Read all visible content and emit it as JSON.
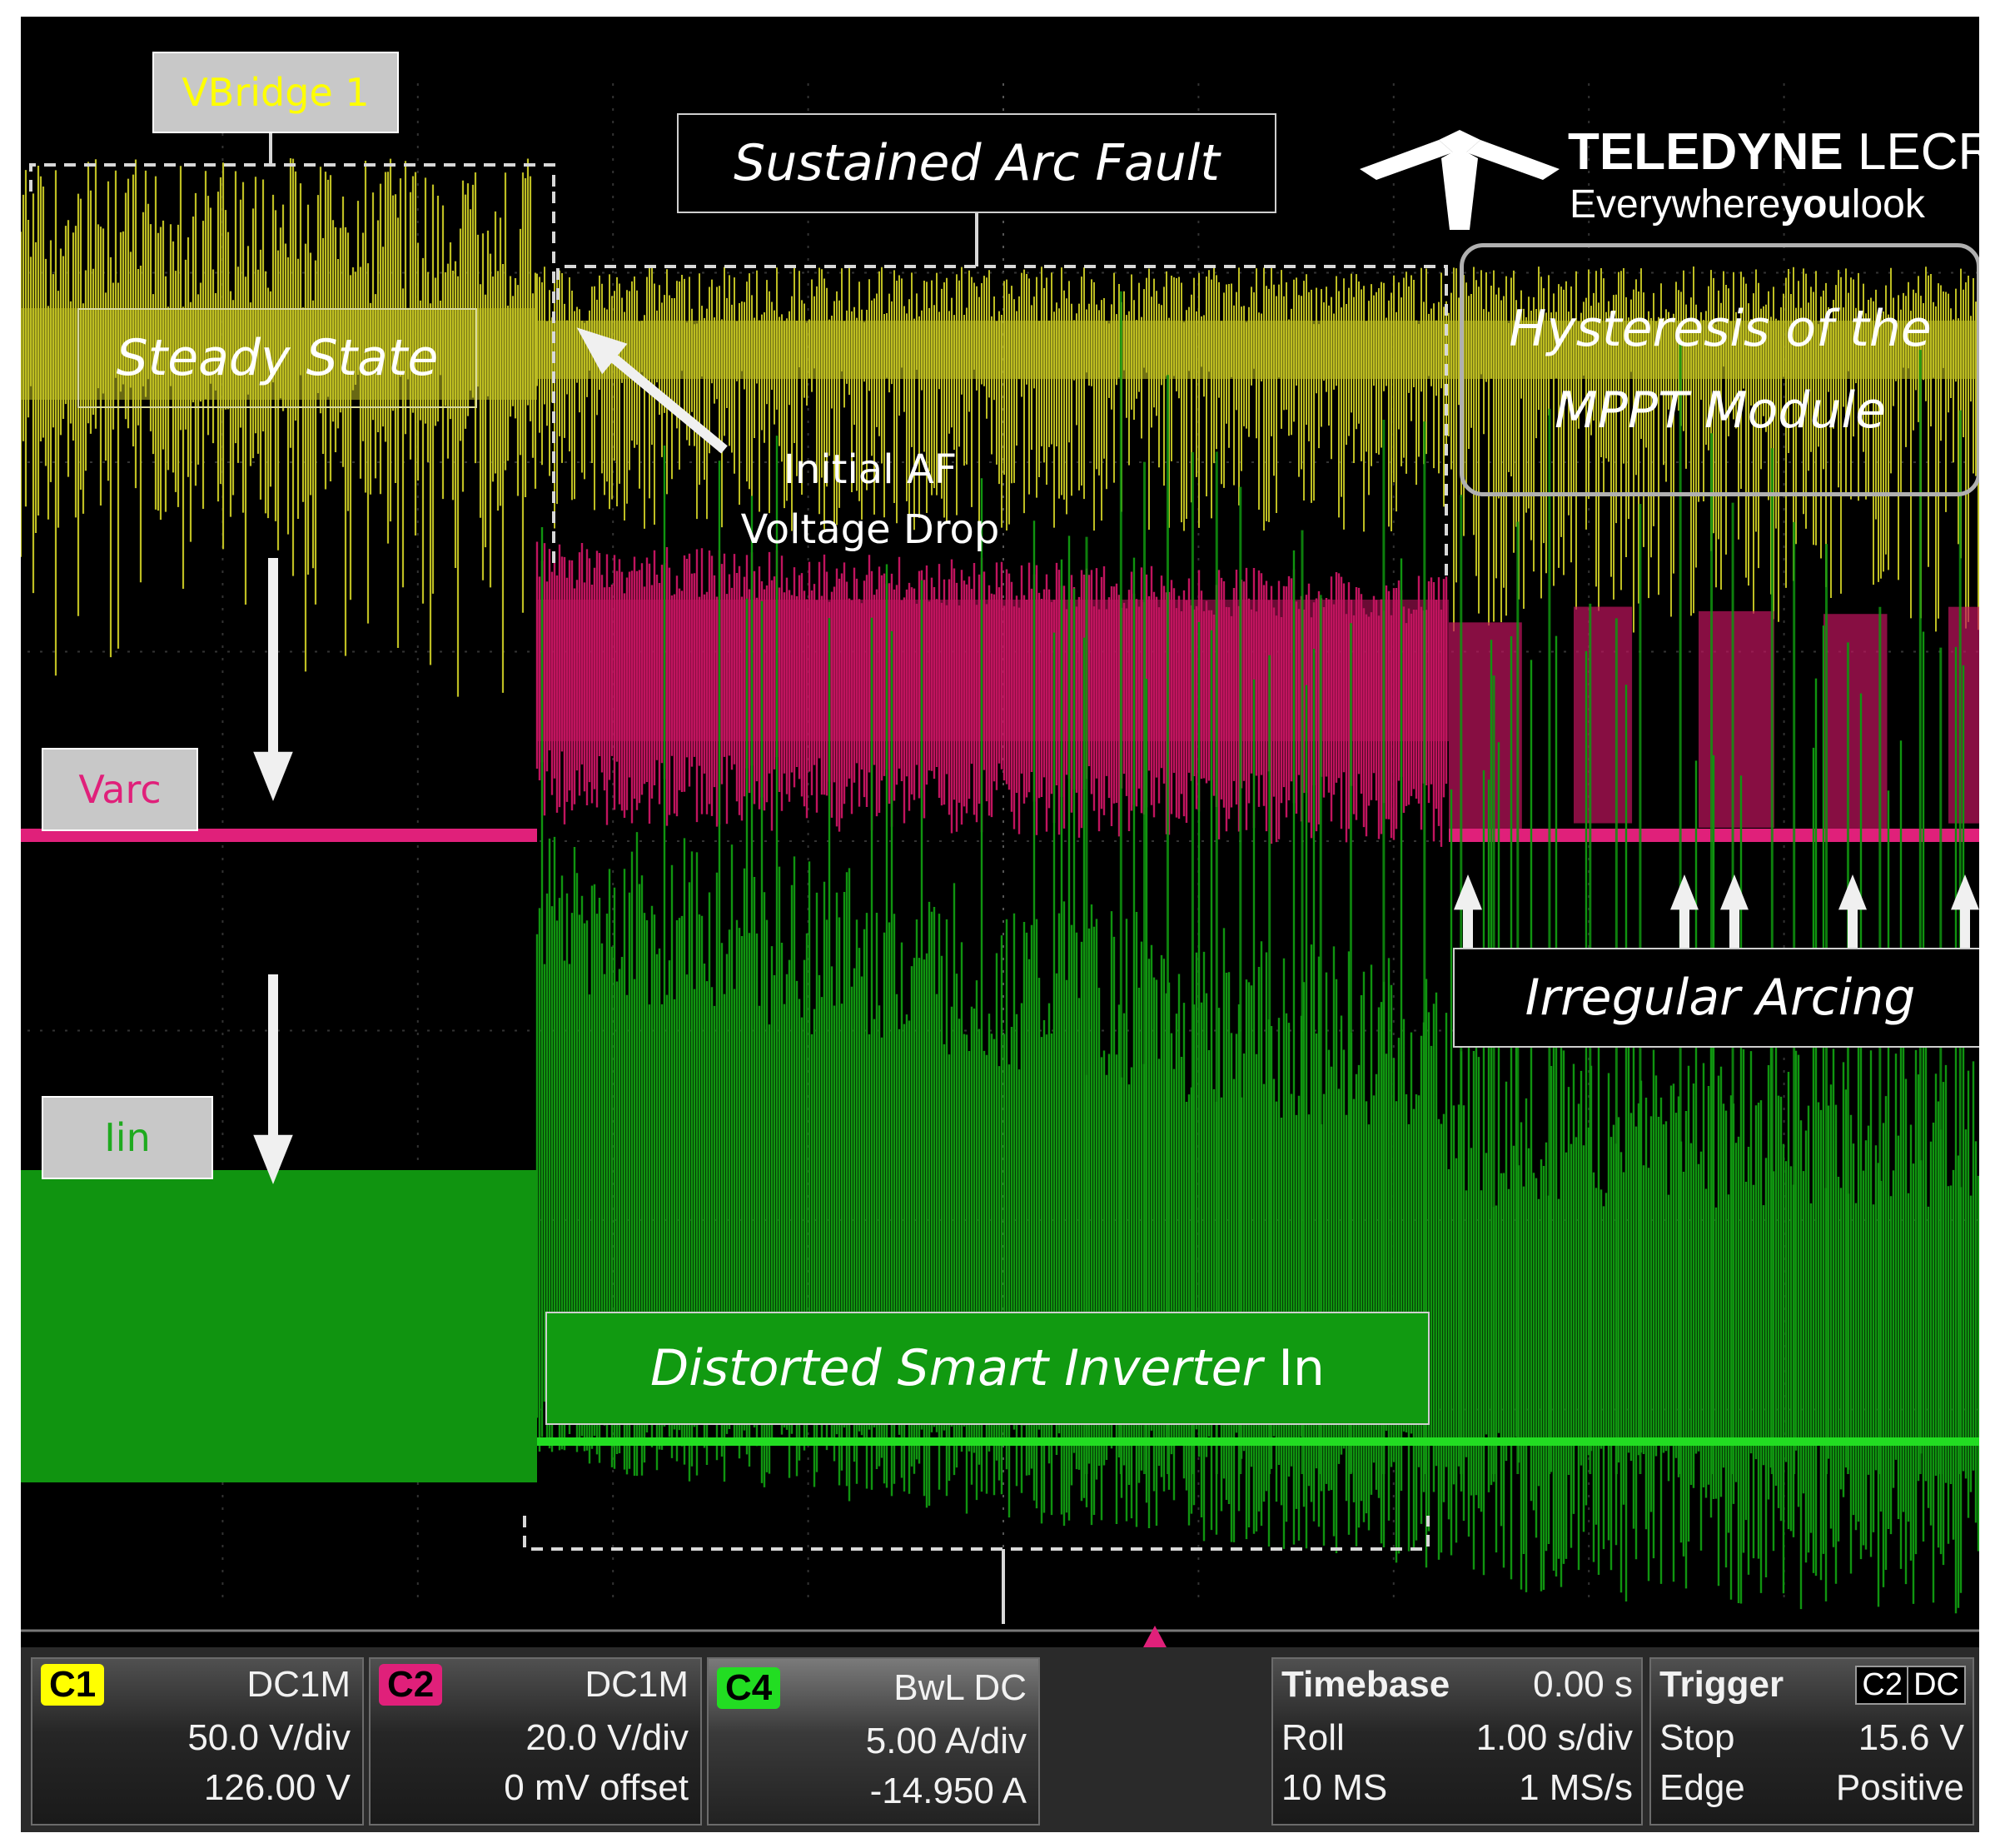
{
  "brand": {
    "name_bold": "TELEDYNE",
    "name_light": " LECROY",
    "tag_plain": "Everywhere",
    "tag_bold": "you",
    "tag_end": "look"
  },
  "channels": {
    "vbridge": {
      "label": "VBridge 1",
      "color": "#ffff00"
    },
    "varc": {
      "label": "Varc",
      "color": "#e0207a"
    },
    "iin": {
      "label": "Iin",
      "color": "#1faa1f"
    }
  },
  "trace_colors": {
    "yellow": "#bdbd22",
    "magenta": "#c0145e",
    "green": "#109410"
  },
  "annotations": {
    "steady_state": "Steady State",
    "sustained_arc": "Sustained Arc Fault",
    "hysteresis_line1": "Hysteresis of the",
    "hysteresis_line2": "MPPT Module",
    "initial_af_line1": "Initial AF",
    "initial_af_line2": "Voltage Drop",
    "irregular_arcing": "Irregular Arcing",
    "distorted_italic": "Distorted Smart Inverter",
    "distorted_plain": " In"
  },
  "panel": {
    "c1": {
      "badge": "C1",
      "coupling": "DC1M",
      "scale": "50.0 V/div",
      "offset": "126.00 V",
      "color": "#ffff00"
    },
    "c2": {
      "badge": "C2",
      "coupling": "DC1M",
      "scale": "20.0 V/div",
      "offset": "0 mV offset",
      "color": "#e0207a"
    },
    "c4": {
      "badge": "C4",
      "coupling": "BwL DC",
      "scale": "5.00 A/div",
      "offset": "-14.950 A",
      "color": "#22dd22"
    },
    "timebase": {
      "title": "Timebase",
      "delay": "0.00 s",
      "mode": "Roll",
      "per_div": "1.00 s/div",
      "samples": "10 MS",
      "rate": "1 MS/s"
    },
    "trigger": {
      "title": "Trigger",
      "source": "C2",
      "coupling": "DC",
      "state": "Stop",
      "level": "15.6 V",
      "type": "Edge",
      "slope": "Positive"
    }
  }
}
